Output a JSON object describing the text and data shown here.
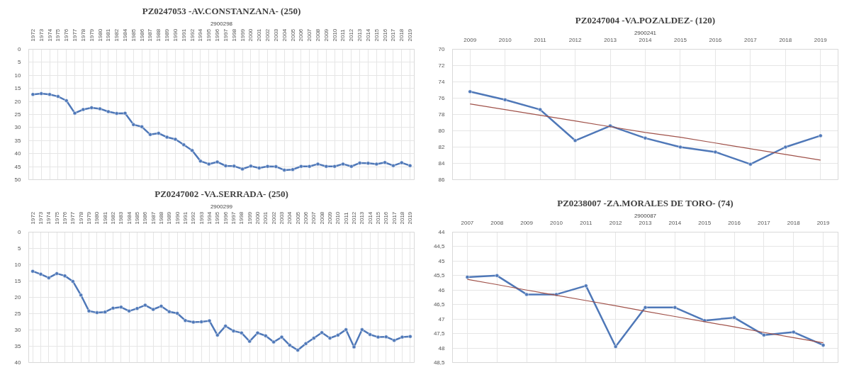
{
  "chart_data": [
    {
      "type": "line",
      "title": "PZ0247053 -AV.CONSTANZANA- (250)",
      "xlabel": "2900298",
      "categories": [
        "1972",
        "1973",
        "1974",
        "1975",
        "1976",
        "1977",
        "1978",
        "1979",
        "1980",
        "1981",
        "1982",
        "1984",
        "1985",
        "1986",
        "1987",
        "1988",
        "1989",
        "1990",
        "1991",
        "1992",
        "1994",
        "1995",
        "1996",
        "1997",
        "1998",
        "1999",
        "2000",
        "2001",
        "2002",
        "2003",
        "2004",
        "2005",
        "2006",
        "2007",
        "2008",
        "2009",
        "2010",
        "2011",
        "2012",
        "2013",
        "2014",
        "2015",
        "2016",
        "2017",
        "2018",
        "2019"
      ],
      "series": [
        {
          "color": "#4f78b8",
          "values": [
            17.3,
            17,
            17.3,
            18.1,
            19.7,
            24.5,
            23.1,
            22.4,
            22.8,
            23.9,
            24.6,
            24.5,
            28.9,
            29.7,
            32.7,
            32.2,
            33.7,
            34.5,
            36.6,
            38.8,
            42.9,
            44,
            43.2,
            44.7,
            44.8,
            45.9,
            44.8,
            45.5,
            44.9,
            45,
            46.3,
            46.1,
            44.9,
            44.9,
            44,
            44.9,
            44.9,
            44,
            44.9,
            43.6,
            43.7,
            44,
            43.4,
            44.6,
            43.5,
            44.6
          ]
        }
      ],
      "ylim": [
        50,
        0
      ],
      "yticks": [
        0,
        5,
        10,
        15,
        20,
        25,
        30,
        35,
        40,
        45,
        50
      ],
      "grid": true,
      "marker": "circle",
      "line_style": "solid"
    },
    {
      "type": "line",
      "title": "PZ0247004 -VA.POZALDEZ- (120)",
      "xlabel": "2900241",
      "categories": [
        "2009",
        "2010",
        "2011",
        "2012",
        "2013",
        "2014",
        "2015",
        "2016",
        "2017",
        "2018",
        "2019"
      ],
      "series": [
        {
          "color": "#4f78b8",
          "values": [
            75.2,
            76.2,
            77.4,
            81.2,
            79.4,
            80.9,
            82,
            82.6,
            84.1,
            82,
            80.6
          ]
        },
        {
          "type": "line",
          "color": "#a0524a",
          "marker": "none",
          "values": [
            76.7,
            77.4,
            78.1,
            78.8,
            79.5,
            80.2,
            80.8,
            81.5,
            82.2,
            82.9,
            83.6
          ]
        }
      ],
      "ylim": [
        86,
        70
      ],
      "yticks": [
        70,
        72,
        74,
        76,
        78,
        80,
        82,
        84,
        86
      ],
      "grid": true,
      "marker": "circle",
      "line_style": "solid"
    },
    {
      "type": "line",
      "title": "PZ0247002 -VA.SERRADA- (250)",
      "xlabel": "2900299",
      "categories": [
        "1972",
        "1973",
        "1974",
        "1975",
        "1976",
        "1977",
        "1978",
        "1979",
        "1980",
        "1981",
        "1982",
        "1983",
        "1984",
        "1985",
        "1986",
        "1987",
        "1988",
        "1989",
        "1990",
        "1991",
        "1992",
        "1993",
        "1994",
        "1995",
        "1996",
        "1997",
        "1998",
        "1999",
        "2000",
        "2001",
        "2002",
        "2003",
        "2004",
        "2005",
        "2006",
        "2007",
        "2008",
        "2009",
        "2010",
        "2011",
        "2012",
        "2013",
        "2014",
        "2015",
        "2016",
        "2017",
        "2018",
        "2019"
      ],
      "series": [
        {
          "color": "#4f78b8",
          "values": [
            12,
            12.9,
            14,
            12.7,
            13.4,
            15.1,
            19.3,
            24.2,
            24.7,
            24.5,
            23.3,
            23,
            24.2,
            23.4,
            22.4,
            23.7,
            22.7,
            24.4,
            24.9,
            27.1,
            27.6,
            27.5,
            27.2,
            31.6,
            28.8,
            30.3,
            30.9,
            33.5,
            30.9,
            31.8,
            33.7,
            32.2,
            34.7,
            36.2,
            34.2,
            32.5,
            30.8,
            32.5,
            31.6,
            29.9,
            35.2,
            29.9,
            31.4,
            32.2,
            32.1,
            33.2,
            32.2,
            32
          ]
        }
      ],
      "ylim": [
        40,
        0
      ],
      "yticks": [
        0,
        5,
        10,
        15,
        20,
        25,
        30,
        35,
        40
      ],
      "grid": true,
      "marker": "circle",
      "line_style": "solid"
    },
    {
      "type": "line",
      "title": "PZ0238007 -ZA.MORALES DE TORO- (74)",
      "xlabel": "2900087",
      "categories": [
        "2007",
        "2008",
        "2009",
        "2010",
        "2011",
        "2012",
        "2013",
        "2014",
        "2015",
        "2016",
        "2017",
        "2018",
        "2019"
      ],
      "series": [
        {
          "color": "#4f78b8",
          "values": [
            45.55,
            45.5,
            46.15,
            46.15,
            45.85,
            47.95,
            46.6,
            46.6,
            47.05,
            46.95,
            47.55,
            47.45,
            47.9
          ]
        },
        {
          "type": "line",
          "color": "#a0524a",
          "marker": "none",
          "values": [
            45.63,
            45.81,
            46.0,
            46.18,
            46.36,
            46.54,
            46.73,
            46.91,
            47.09,
            47.27,
            47.46,
            47.64,
            47.82
          ]
        }
      ],
      "ylim": [
        48.5,
        44
      ],
      "yticks": [
        44,
        {
          "value": 44.5,
          "label": "44,5"
        },
        45,
        {
          "value": 45.5,
          "label": "45,5"
        },
        46,
        {
          "value": 46.5,
          "label": "46,5"
        },
        47,
        {
          "value": 47.5,
          "label": "47,5"
        },
        48,
        {
          "value": 48.5,
          "label": "48,5"
        }
      ],
      "grid": true,
      "marker": "circle",
      "line_style": "solid"
    }
  ]
}
